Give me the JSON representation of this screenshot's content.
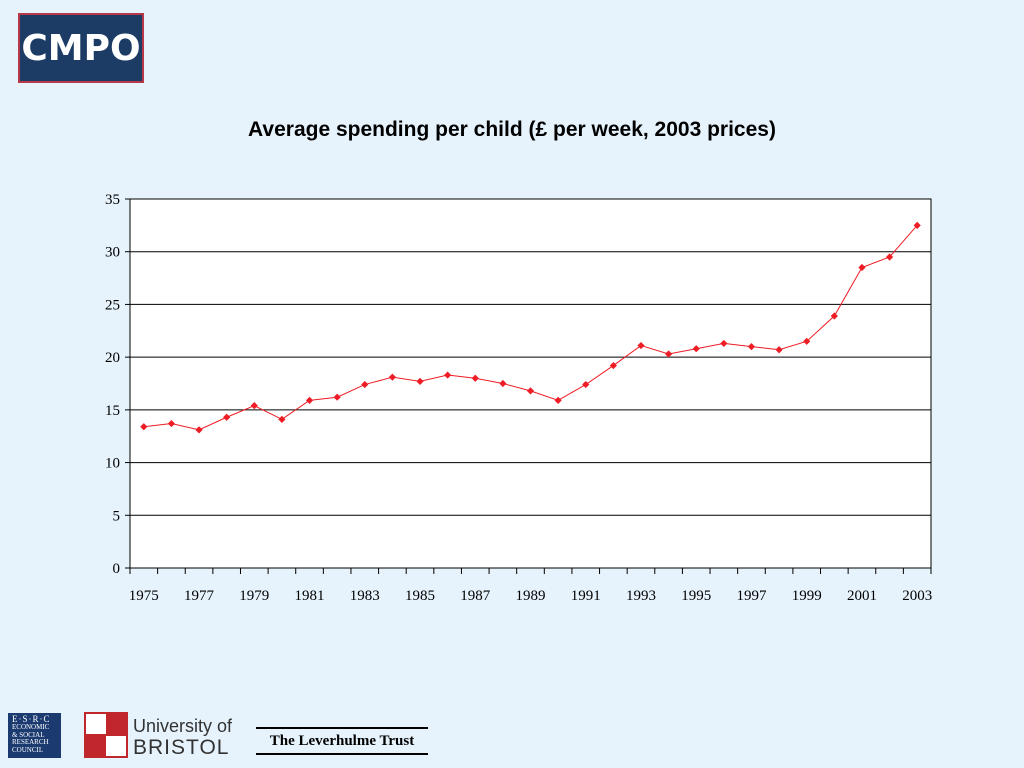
{
  "logo": {
    "text": "CMPO"
  },
  "chart_data": {
    "type": "line",
    "title": "Average spending per child (£ per week, 2003 prices)",
    "xlabel": "",
    "ylabel": "",
    "ylim": [
      0,
      35
    ],
    "yticks": [
      0,
      5,
      10,
      15,
      20,
      25,
      30,
      35
    ],
    "x": [
      1975,
      1976,
      1977,
      1978,
      1979,
      1980,
      1981,
      1982,
      1983,
      1984,
      1985,
      1986,
      1987,
      1988,
      1989,
      1990,
      1991,
      1992,
      1993,
      1994,
      1995,
      1996,
      1997,
      1998,
      1999,
      2000,
      2001,
      2002,
      2003
    ],
    "xtick_labels": [
      "1975",
      "1977",
      "1979",
      "1981",
      "1983",
      "1985",
      "1987",
      "1989",
      "1991",
      "1993",
      "1995",
      "1997",
      "1999",
      "2001",
      "2003"
    ],
    "series": [
      {
        "values": [
          13.4,
          13.7,
          13.1,
          14.3,
          15.4,
          14.1,
          15.9,
          16.2,
          17.4,
          18.1,
          17.7,
          18.3,
          18.0,
          17.5,
          16.8,
          15.9,
          17.4,
          19.2,
          21.1,
          20.3,
          20.8,
          21.3,
          21.0,
          20.7,
          21.5,
          23.9,
          28.5,
          29.5,
          32.5
        ]
      }
    ],
    "grid": true,
    "line_color": "#ee1c24",
    "marker": "diamond"
  },
  "footer": {
    "esrc": {
      "top": "E·S·R·C",
      "lines": [
        "ECONOMIC",
        "& SOCIAL",
        "RESEARCH",
        "COUNCIL"
      ]
    },
    "bristol": {
      "line1": "University of",
      "line2": "BRISTOL"
    },
    "leverhulme": "The Leverhulme Trust"
  }
}
